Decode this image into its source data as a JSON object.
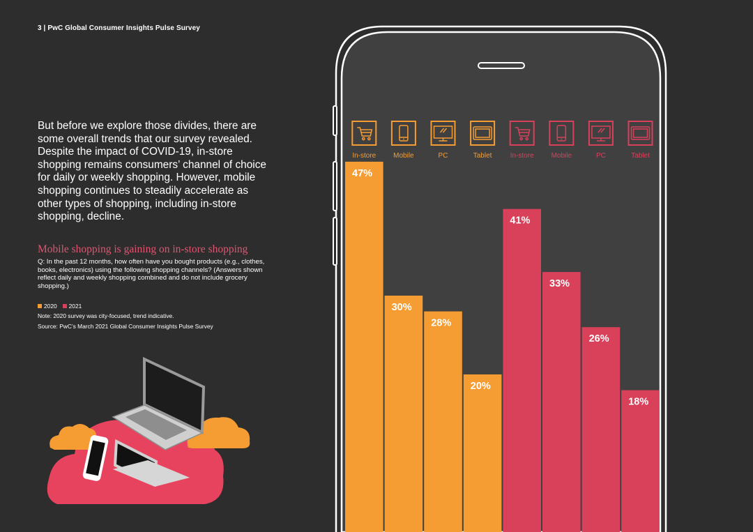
{
  "header": "3  |  PwC Global Consumer Insights Pulse Survey",
  "intro": "But before we explore those divides, there are some overall trends that our survey revealed. Despite the impact of COVID-19, in-store shopping remains consumers’ channel of choice for daily or weekly shopping. However, mobile shopping continues to steadily accelerate as other types of shopping, including in-store shopping, decline.",
  "question": "Q: In the past 12 months, how often have you bought products (e.g., clothes, books, electronics) using the following shopping channels? (Answers shown reflect daily and weekly shopping combined and do not include grocery shopping.)",
  "note": "Note: 2020 survey was city-focused, trend indicative.",
  "source": "Source: PwC’s March 2021 Global Consumer Insights Pulse Survey",
  "colors": {
    "y2020": "#f59d33",
    "y2021": "#d9415b",
    "background": "#2d2d2d",
    "panel": "#404040"
  },
  "chart_data": {
    "type": "bar",
    "title": "Mobile shopping is gaining on in-store shopping",
    "legend": [
      "2020",
      "2021"
    ],
    "legend_position": "top-left",
    "unit": "%",
    "ylim": [
      0,
      100
    ],
    "bars": [
      {
        "category": "In-store",
        "series": "2020",
        "value": 47,
        "label": "47%",
        "icon": "shopping-cart-icon"
      },
      {
        "category": "Mobile",
        "series": "2020",
        "value": 30,
        "label": "30%",
        "icon": "mobile-phone-icon"
      },
      {
        "category": "PC",
        "series": "2020",
        "value": 28,
        "label": "28%",
        "icon": "desktop-monitor-icon"
      },
      {
        "category": "Tablet",
        "series": "2020",
        "value": 20,
        "label": "20%",
        "icon": "tablet-icon"
      },
      {
        "category": "In-store",
        "series": "2021",
        "value": 41,
        "label": "41%",
        "icon": "shopping-cart-icon"
      },
      {
        "category": "Mobile",
        "series": "2021",
        "value": 33,
        "label": "33%",
        "icon": "mobile-phone-icon"
      },
      {
        "category": "PC",
        "series": "2021",
        "value": 26,
        "label": "26%",
        "icon": "desktop-monitor-icon"
      },
      {
        "category": "Tablet",
        "series": "2021",
        "value": 18,
        "label": "18%",
        "icon": "tablet-icon"
      }
    ]
  }
}
